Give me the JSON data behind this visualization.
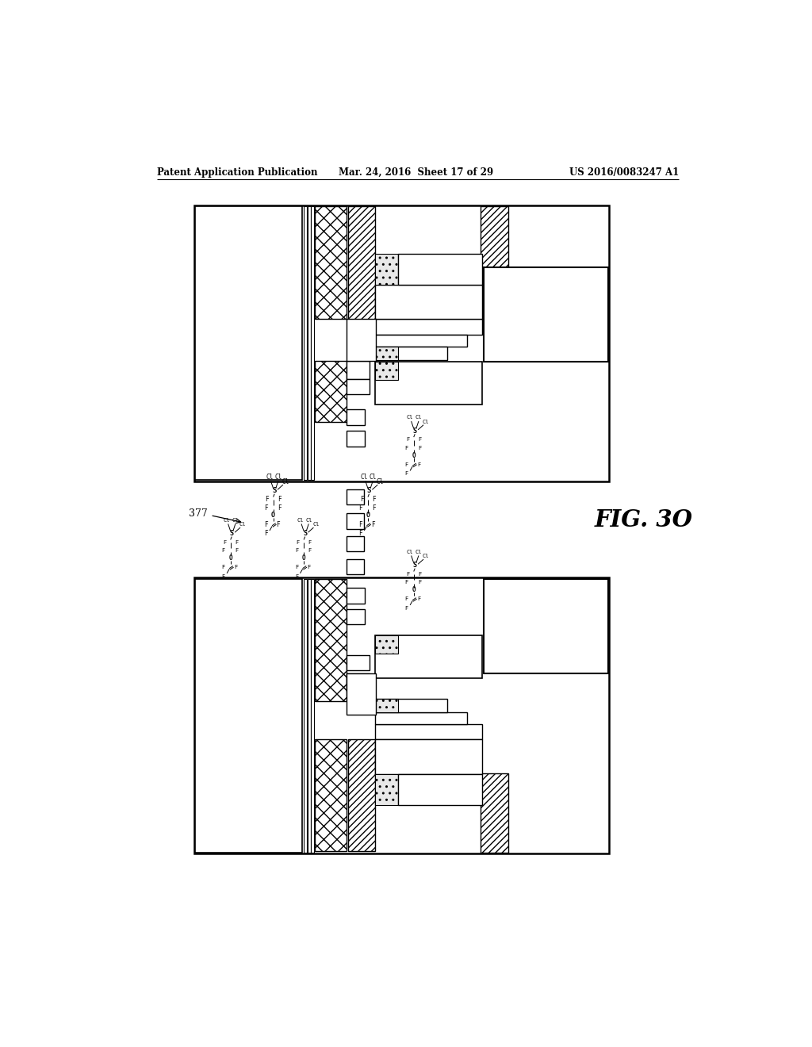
{
  "bg_color": "#ffffff",
  "header_left": "Patent Application Publication",
  "header_center": "Mar. 24, 2016  Sheet 17 of 29",
  "header_right": "US 2016/0083247 A1",
  "fig_label": "FIG. 3O",
  "label_377": "377"
}
